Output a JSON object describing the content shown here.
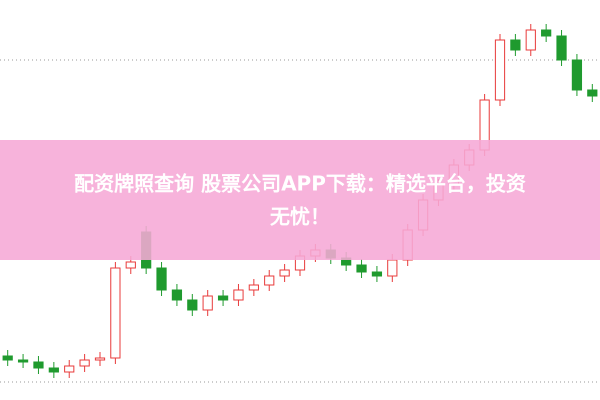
{
  "chart_data": {
    "type": "candlestick",
    "ylim": [
      0,
      100
    ],
    "up_color": "#e83a3a",
    "down_color": "#1f9a2e",
    "open": [
      11,
      10,
      9.5,
      8,
      7,
      8.5,
      10,
      10.5,
      33,
      42,
      33,
      27.5,
      25,
      22.5,
      26,
      25,
      27.5,
      28.75,
      31,
      32.5,
      36,
      37.5,
      35.5,
      33.75,
      32,
      31,
      35,
      42.5,
      50,
      53.75,
      58.75,
      62.5,
      75,
      90,
      87.5,
      92.5,
      91,
      85,
      77.5
    ],
    "close": [
      10,
      9.5,
      8,
      7,
      8.5,
      10,
      10.5,
      33,
      34.5,
      33,
      27.5,
      25,
      22.5,
      26,
      25,
      27.5,
      28.75,
      31,
      32.5,
      36,
      37.5,
      35.5,
      33.75,
      32,
      31,
      35,
      42.5,
      50,
      53.75,
      58.75,
      62.5,
      75,
      90,
      87.5,
      92.5,
      91,
      85,
      77.5,
      76
    ],
    "high": [
      12.5,
      11.5,
      11,
      9.5,
      10,
      11.5,
      12,
      34.5,
      36,
      43.5,
      34.5,
      29,
      26.5,
      27.5,
      27.5,
      29,
      30.25,
      32.5,
      34,
      37.5,
      39,
      39,
      37,
      35.25,
      33.5,
      36.5,
      44,
      51.5,
      55.25,
      60.25,
      64,
      76.5,
      91.5,
      91.5,
      94,
      94,
      92.5,
      86.5,
      79
    ],
    "low": [
      8.5,
      8,
      6.5,
      5.5,
      5.5,
      7,
      8.5,
      9,
      31.5,
      31.5,
      26,
      23.5,
      21,
      21,
      23.5,
      23.5,
      26,
      27.25,
      29.5,
      31,
      34.5,
      34,
      32.25,
      30.5,
      29.5,
      29.5,
      33.5,
      41,
      48.5,
      52.25,
      57.25,
      61,
      73.5,
      86,
      86,
      89.5,
      83.5,
      76,
      74.5
    ],
    "annotations": [
      "配资牌照查询 股票公司APP下载：精选平台，投资",
      "无忧！"
    ]
  }
}
